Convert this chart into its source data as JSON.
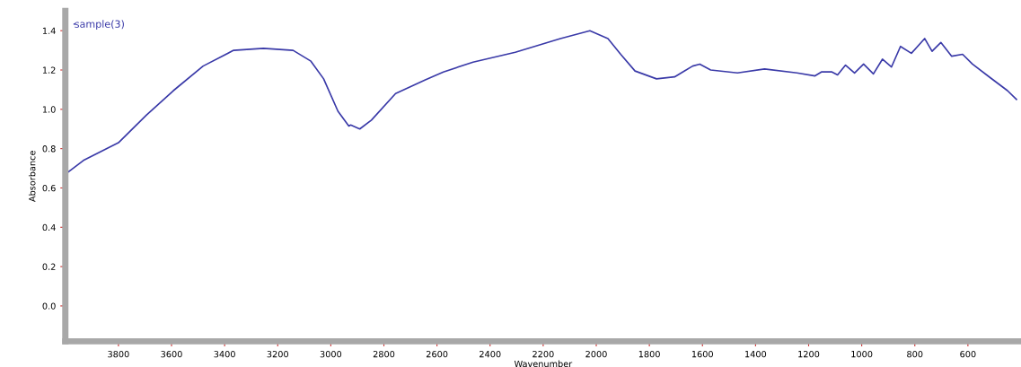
{
  "chart_data": {
    "type": "line",
    "xlabel": "Wavenumber",
    "ylabel": "Absorbance",
    "xlim": [
      4000,
      400
    ],
    "ylim": [
      -0.18,
      1.5
    ],
    "xticks": [
      3800,
      3600,
      3400,
      3200,
      3000,
      2800,
      2600,
      2400,
      2200,
      2000,
      1800,
      1600,
      1400,
      1200,
      1000,
      800,
      600
    ],
    "yticks": [
      {
        "value": 0,
        "label": "0.0"
      },
      0.2,
      0.4,
      0.6,
      0.8,
      {
        "value": 1,
        "label": "1.0"
      },
      1.2,
      1.4
    ],
    "grid": false,
    "legend": "top left",
    "marker": "none",
    "line_style": "solid",
    "series": [
      {
        "name": "sample(3)",
        "color": "#3a3aa8",
        "x": [
          4000,
          3932,
          3800,
          3695,
          3593,
          3481,
          3366,
          3254,
          3142,
          3075,
          3027,
          2973,
          2932,
          2925,
          2891,
          2847,
          2756,
          2644,
          2576,
          2464,
          2305,
          2135,
          2024,
          1956,
          1908,
          1854,
          1773,
          1705,
          1637,
          1610,
          1569,
          1468,
          1366,
          1244,
          1176,
          1152,
          1112,
          1091,
          1061,
          1027,
          993,
          956,
          922,
          888,
          854,
          813,
          763,
          735,
          702,
          661,
          620,
          583,
          515,
          451,
          417
        ],
        "values": [
          0.67,
          0.74,
          0.83,
          0.97,
          1.095,
          1.22,
          1.3,
          1.31,
          1.3,
          1.245,
          1.155,
          0.99,
          0.915,
          0.92,
          0.9,
          0.945,
          1.08,
          1.15,
          1.19,
          1.24,
          1.29,
          1.36,
          1.4,
          1.36,
          1.28,
          1.195,
          1.155,
          1.165,
          1.22,
          1.23,
          1.2,
          1.185,
          1.205,
          1.185,
          1.17,
          1.19,
          1.19,
          1.175,
          1.225,
          1.185,
          1.23,
          1.18,
          1.255,
          1.215,
          1.32,
          1.285,
          1.36,
          1.295,
          1.34,
          1.27,
          1.28,
          1.23,
          1.16,
          1.095,
          1.05
        ]
      }
    ]
  }
}
